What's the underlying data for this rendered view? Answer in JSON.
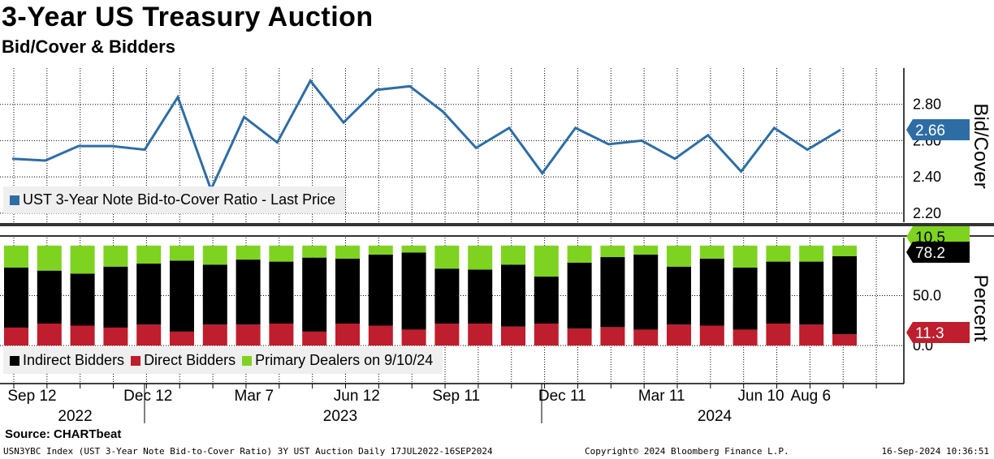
{
  "header": {
    "title": "3-Year US Treasury Auction",
    "subtitle": "Bid/Cover & Bidders"
  },
  "source": "Source: CHARTbeat",
  "footer": {
    "left": "USN3YBC Index (UST 3-Year Note Bid-to-Cover Ratio) 3Y UST Auction  Daily 17JUL2022-16SEP2024",
    "middle": "Copyright© 2024 Bloomberg Finance L.P.",
    "right": "16-Sep-2024 10:36:51"
  },
  "colors": {
    "line": "#2e6da4",
    "indirect": "#000000",
    "direct": "#be1e2d",
    "primary": "#7ed321",
    "grid": "#000000",
    "legend_bg": "#eeeeee"
  },
  "legend": {
    "top": {
      "label": "UST 3-Year Note Bid-to-Cover Ratio - Last Price"
    },
    "bottom": [
      {
        "label": "Indirect Bidders",
        "color": "#000000"
      },
      {
        "label": "Direct Bidders",
        "color": "#be1e2d"
      },
      {
        "label": "Primary Dealers on 9/10/24",
        "color": "#7ed321"
      }
    ]
  },
  "chart_data": [
    {
      "type": "line",
      "title": "Bid/Cover",
      "ylabel": "Bid/Cover",
      "ylim": [
        2.15,
        3.0
      ],
      "yticks": [
        "2.80",
        "2.60",
        "2.40",
        "2.20"
      ],
      "ytick_values": [
        2.8,
        2.6,
        2.4,
        2.2
      ],
      "last_value_label": "2.66",
      "series": [
        {
          "name": "UST 3-Year Note Bid-to-Cover Ratio - Last Price",
          "values": [
            2.5,
            2.49,
            2.57,
            2.57,
            2.55,
            2.84,
            2.33,
            2.73,
            2.59,
            2.93,
            2.7,
            2.88,
            2.9,
            2.76,
            2.56,
            2.67,
            2.42,
            2.67,
            2.58,
            2.6,
            2.5,
            2.63,
            2.43,
            2.67,
            2.55,
            2.66
          ]
        }
      ]
    },
    {
      "type": "bar",
      "stacked": true,
      "title": "Bidders",
      "ylabel": "Percent",
      "ylim": [
        -38,
        108
      ],
      "yticks": [
        "50.0",
        "0.0"
      ],
      "ytick_values": [
        50,
        0
      ],
      "value_labels": {
        "primary": "10.5",
        "indirect": "78.2",
        "direct": "11.3"
      },
      "series": [
        {
          "name": "Direct Bidders",
          "values": [
            18.0,
            22.0,
            20.0,
            18.0,
            21.0,
            14.0,
            21.0,
            21.0,
            22.0,
            14.0,
            22.0,
            20.0,
            16.0,
            22.0,
            22.0,
            19.0,
            22.0,
            17.0,
            18.5,
            16.0,
            21.0,
            20.0,
            16.0,
            22.0,
            21.0,
            11.3
          ]
        },
        {
          "name": "Indirect Bidders",
          "values": [
            60.0,
            53.0,
            52.0,
            61.0,
            61.0,
            71.0,
            60.0,
            65.0,
            62.0,
            74.0,
            65.0,
            71.0,
            77.0,
            55.0,
            54.0,
            62.0,
            47.0,
            66.0,
            70.0,
            75.0,
            58.0,
            67.0,
            62.0,
            62.0,
            63.0,
            78.2
          ]
        },
        {
          "name": "Primary Dealers on 9/10/24",
          "values": [
            22.0,
            25.0,
            28.0,
            21.0,
            18.0,
            15.0,
            19.0,
            14.0,
            16.0,
            12.0,
            13.0,
            9.0,
            7.0,
            23.0,
            24.0,
            19.0,
            31.0,
            17.0,
            11.5,
            9.0,
            21.0,
            13.0,
            22.0,
            16.0,
            16.0,
            10.5
          ]
        }
      ]
    }
  ],
  "x_axis": {
    "month_labels": [
      "Sep 12",
      "Dec 12",
      "Mar 7",
      "Jun 12",
      "Sep 11",
      "Dec 11",
      "Mar 11",
      "Jun 10",
      "Aug 6"
    ],
    "month_label_auction_index": [
      0.6,
      4.1,
      7.3,
      10.4,
      13.4,
      16.6,
      19.6,
      22.6,
      24.1
    ],
    "year_labels": [
      "2022",
      "2023",
      "2024"
    ],
    "year_label_auction_index": [
      1.9,
      9.9,
      21.2
    ]
  }
}
